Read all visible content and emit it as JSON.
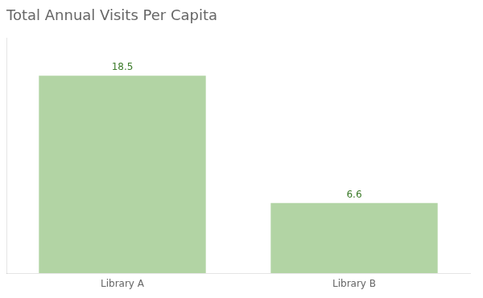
{
  "chart_data": {
    "type": "bar",
    "title": "Total Annual Visits Per Capita",
    "categories": [
      "Library A",
      "Library B"
    ],
    "values": [
      18.5,
      6.6
    ],
    "color": "#b2d4a4",
    "ylim": [
      0,
      22
    ],
    "grid": false,
    "data_labels": true,
    "tick_labels": "x"
  }
}
